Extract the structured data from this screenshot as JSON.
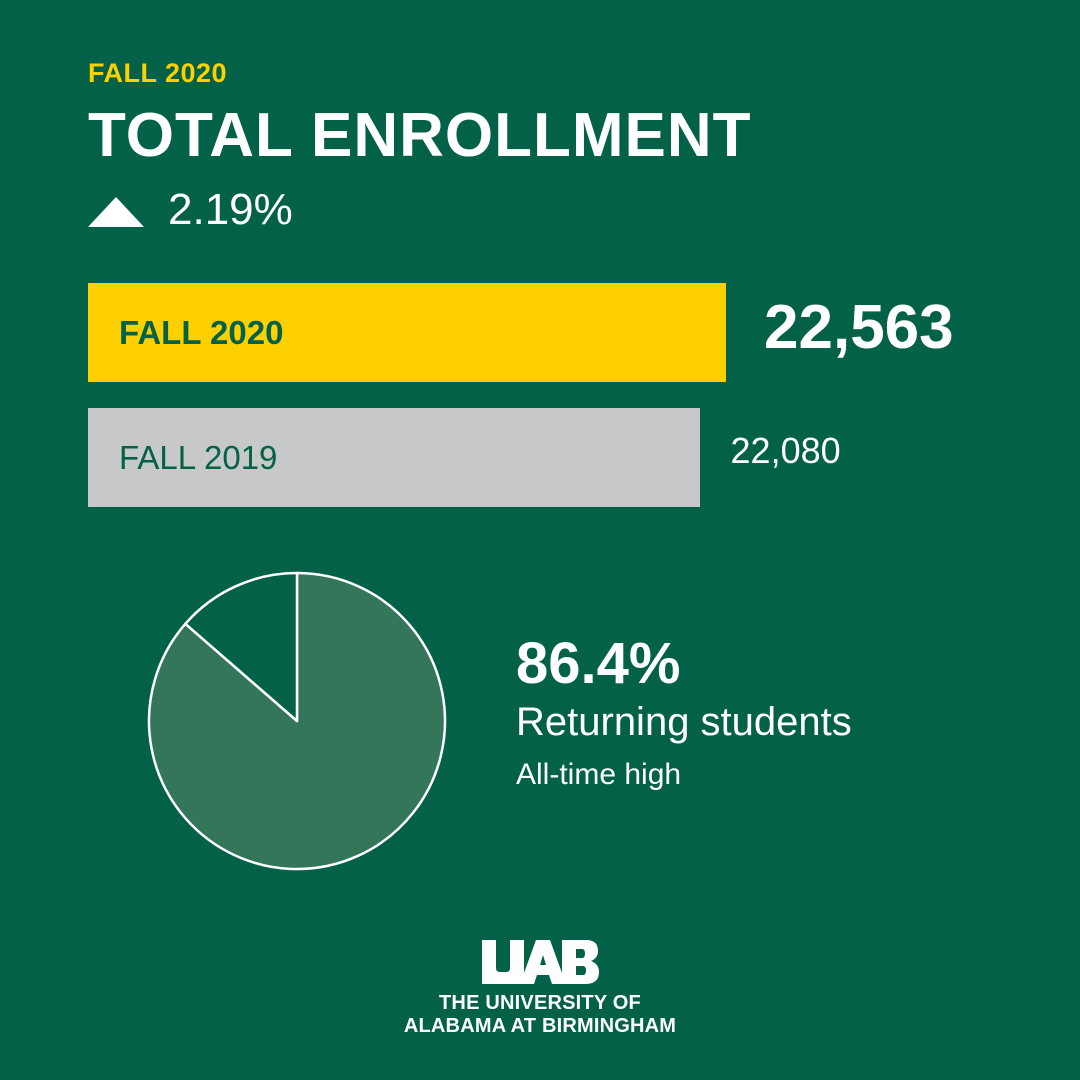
{
  "header": {
    "eyebrow": "FALL 2020",
    "title": "TOTAL ENROLLMENT",
    "change": "2.19%",
    "change_icon": "triangle-up-icon"
  },
  "chart_data": [
    {
      "type": "bar",
      "orientation": "horizontal",
      "categories": [
        "FALL 2020",
        "FALL 2019"
      ],
      "values": [
        22563,
        22080
      ],
      "value_labels": [
        "22,563",
        "22,080"
      ],
      "colors": [
        "#FFD000",
        "#C7C8CA"
      ]
    },
    {
      "type": "pie",
      "value_percent": 86.4,
      "value_label": "86.4%",
      "label": "Returning students",
      "note": "All-time high",
      "colors": [
        "#34765A",
        "#036147"
      ]
    }
  ],
  "logo": {
    "wordmark": "UAB",
    "line1": "THE UNIVERSITY OF",
    "line2": "ALABAMA AT BIRMINGHAM"
  },
  "colors": {
    "background": "#036147",
    "accent": "#FFD000",
    "gray": "#C7C8CA"
  }
}
